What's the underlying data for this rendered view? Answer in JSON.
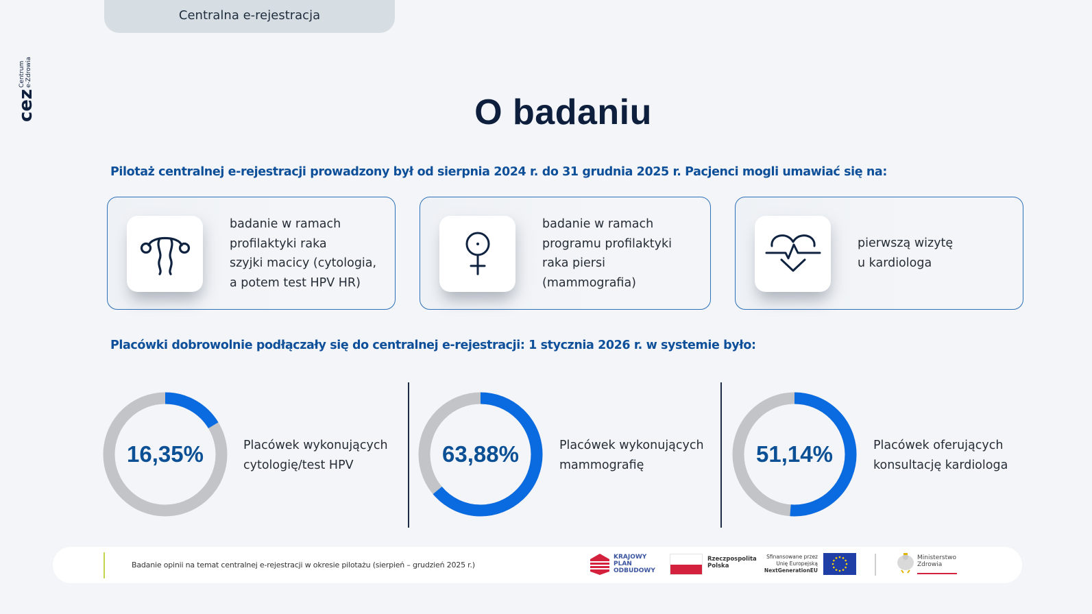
{
  "header": {
    "tab_label": "Centralna e-rejestracja",
    "logo": {
      "mark": "cez",
      "line1": "Centrum",
      "line2": "e-Zdrowia"
    }
  },
  "title": "O badaniu",
  "intro": "Pilotaż centralnej e-rejestracji prowadzony był od sierpnia 2024 r. do 31 grudnia 2025 r. Pacjenci mogli umawiać się na:",
  "cards": [
    {
      "icon": "uterus-icon",
      "lines": [
        "badanie w ramach",
        "profilaktyki raka",
        "szyjki macicy (cytologia,",
        "a potem test HPV HR)"
      ]
    },
    {
      "icon": "female-symbol-icon",
      "lines": [
        "badanie w ramach",
        "programu profilaktyki",
        "raka piersi",
        "(mammografia)"
      ]
    },
    {
      "icon": "heart-pulse-icon",
      "lines": [
        "pierwszą wizytę",
        "u kardiologa"
      ]
    }
  ],
  "subheading": "Placówki dobrowolnie podłączały się do centralnej e-rejestracji: 1 stycznia 2026 r. w systemie było:",
  "stats": [
    {
      "value": 16.35,
      "label_value": "16,35%",
      "lines": [
        "Placówek wykonujących",
        "cytologię/test HPV"
      ]
    },
    {
      "value": 63.88,
      "label_value": "63,88%",
      "lines": [
        "Placówek wykonujących",
        "mammografię"
      ]
    },
    {
      "value": 51.14,
      "label_value": "51,14%",
      "lines": [
        "Placówek oferujących",
        "konsultację kardiologa"
      ]
    }
  ],
  "colors": {
    "accent_blue": "#0a6ae0",
    "track_grey": "#c2c4c7",
    "heading_blue": "#0e4f9a",
    "title_navy": "#0d1f3c"
  },
  "footer": {
    "note": "Badanie opinii na temat centralnej e-rejestracji w okresie pilotażu (sierpień – grudzień 2025 r.)",
    "logos": {
      "kpo": [
        "KRAJOWY",
        "PLAN",
        "ODBUDOWY"
      ],
      "rp": [
        "Rzeczpospolita",
        "Polska"
      ],
      "eu": [
        "Sfinansowane przez",
        "Unię Europejską",
        "NextGenerationEU"
      ],
      "mz": [
        "Ministerstwo",
        "Zdrowia"
      ]
    }
  }
}
